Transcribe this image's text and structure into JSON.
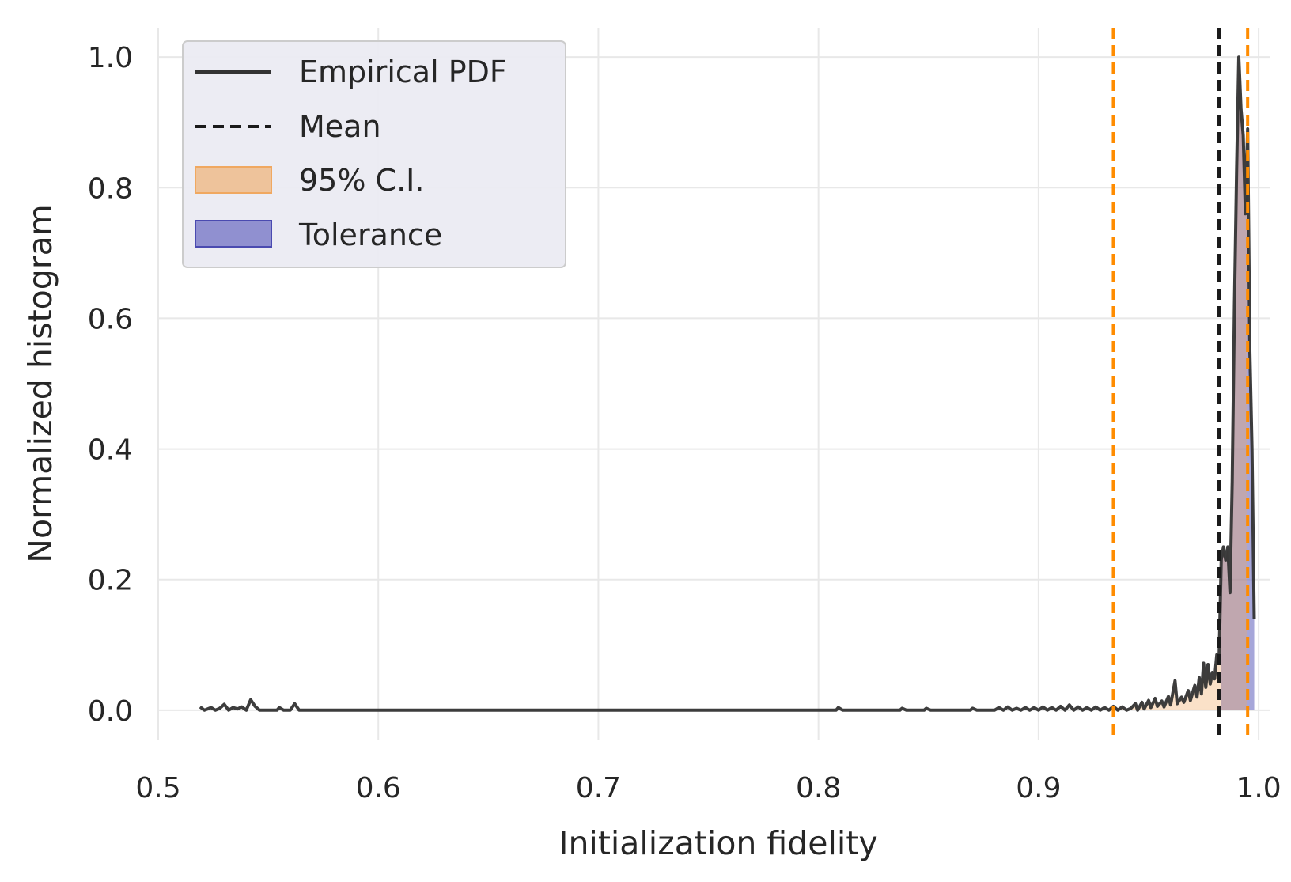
{
  "chart_data": {
    "type": "line",
    "title": "",
    "xlabel": "Initialization fidelity",
    "ylabel": "Normalized histogram",
    "xlim": [
      0.5,
      1.005
    ],
    "ylim": [
      -0.045,
      1.045
    ],
    "xticks": [
      0.5,
      0.6,
      0.7,
      0.8,
      0.9,
      1.0
    ],
    "xtick_labels": [
      "0.5",
      "0.6",
      "0.7",
      "0.8",
      "0.9",
      "1.0"
    ],
    "yticks": [
      0.0,
      0.2,
      0.4,
      0.6,
      0.8,
      1.0
    ],
    "ytick_labels": [
      "0.0",
      "0.2",
      "0.4",
      "0.6",
      "0.8",
      "1.0"
    ],
    "grid": true,
    "legend_position": "top-left",
    "legend": [
      {
        "label": "Empirical PDF",
        "kind": "line",
        "color": "#333333"
      },
      {
        "label": "Mean",
        "kind": "dashed",
        "color": "#1a1a1a"
      },
      {
        "label": "95% C.I.",
        "kind": "patch",
        "color": "#f0a860"
      },
      {
        "label": "Tolerance",
        "kind": "patch",
        "color": "#6a6ac0"
      }
    ],
    "series": [
      {
        "name": "Empirical PDF",
        "color": "#333333",
        "points": [
          [
            0.519,
            0.005
          ],
          [
            0.521,
            0.0
          ],
          [
            0.524,
            0.004
          ],
          [
            0.526,
            0.0
          ],
          [
            0.528,
            0.003
          ],
          [
            0.53,
            0.009
          ],
          [
            0.532,
            0.0
          ],
          [
            0.534,
            0.004
          ],
          [
            0.536,
            0.002
          ],
          [
            0.538,
            0.005
          ],
          [
            0.54,
            0.0
          ],
          [
            0.542,
            0.016
          ],
          [
            0.544,
            0.006
          ],
          [
            0.546,
            0.0
          ],
          [
            0.55,
            0.0
          ],
          [
            0.554,
            0.0
          ],
          [
            0.555,
            0.004
          ],
          [
            0.557,
            0.0
          ],
          [
            0.56,
            0.0
          ],
          [
            0.562,
            0.01
          ],
          [
            0.564,
            0.0
          ],
          [
            0.808,
            0.0
          ],
          [
            0.809,
            0.004
          ],
          [
            0.811,
            0.0
          ],
          [
            0.837,
            0.0
          ],
          [
            0.838,
            0.003
          ],
          [
            0.84,
            0.0
          ],
          [
            0.848,
            0.0
          ],
          [
            0.849,
            0.003
          ],
          [
            0.851,
            0.0
          ],
          [
            0.869,
            0.0
          ],
          [
            0.87,
            0.003
          ],
          [
            0.872,
            0.0
          ],
          [
            0.88,
            0.0
          ],
          [
            0.882,
            0.004
          ],
          [
            0.884,
            0.0
          ],
          [
            0.886,
            0.005
          ],
          [
            0.888,
            0.0
          ],
          [
            0.89,
            0.003
          ],
          [
            0.892,
            0.0
          ],
          [
            0.894,
            0.004
          ],
          [
            0.896,
            0.0
          ],
          [
            0.898,
            0.004
          ],
          [
            0.9,
            0.0
          ],
          [
            0.902,
            0.005
          ],
          [
            0.904,
            0.0
          ],
          [
            0.906,
            0.004
          ],
          [
            0.908,
            0.0
          ],
          [
            0.91,
            0.006
          ],
          [
            0.912,
            0.0
          ],
          [
            0.914,
            0.008
          ],
          [
            0.916,
            0.0
          ],
          [
            0.918,
            0.005
          ],
          [
            0.92,
            0.0
          ],
          [
            0.922,
            0.004
          ],
          [
            0.924,
            0.0
          ],
          [
            0.926,
            0.005
          ],
          [
            0.928,
            0.0
          ],
          [
            0.93,
            0.004
          ],
          [
            0.932,
            0.0
          ],
          [
            0.934,
            0.006
          ],
          [
            0.936,
            0.0
          ],
          [
            0.938,
            0.005
          ],
          [
            0.94,
            0.0
          ],
          [
            0.942,
            0.003
          ],
          [
            0.944,
            0.01
          ],
          [
            0.945,
            0.0
          ],
          [
            0.947,
            0.012
          ],
          [
            0.948,
            0.002
          ],
          [
            0.95,
            0.015
          ],
          [
            0.951,
            0.004
          ],
          [
            0.953,
            0.018
          ],
          [
            0.954,
            0.006
          ],
          [
            0.956,
            0.014
          ],
          [
            0.957,
            0.005
          ],
          [
            0.959,
            0.021
          ],
          [
            0.96,
            0.008
          ],
          [
            0.962,
            0.045
          ],
          [
            0.963,
            0.01
          ],
          [
            0.965,
            0.02
          ],
          [
            0.966,
            0.012
          ],
          [
            0.968,
            0.03
          ],
          [
            0.969,
            0.015
          ],
          [
            0.971,
            0.038
          ],
          [
            0.972,
            0.02
          ],
          [
            0.973,
            0.05
          ],
          [
            0.974,
            0.025
          ],
          [
            0.975,
            0.072
          ],
          [
            0.976,
            0.035
          ],
          [
            0.977,
            0.07
          ],
          [
            0.978,
            0.04
          ],
          [
            0.979,
            0.058
          ],
          [
            0.98,
            0.048
          ],
          [
            0.981,
            0.085
          ],
          [
            0.982,
            0.075
          ],
          [
            0.983,
            0.23
          ],
          [
            0.984,
            0.25
          ],
          [
            0.985,
            0.23
          ],
          [
            0.986,
            0.25
          ],
          [
            0.987,
            0.18
          ],
          [
            0.988,
            0.35
          ],
          [
            0.989,
            0.62
          ],
          [
            0.99,
            0.83
          ],
          [
            0.991,
            1.0
          ],
          [
            0.992,
            0.92
          ],
          [
            0.993,
            0.88
          ],
          [
            0.994,
            0.76
          ],
          [
            0.995,
            0.89
          ],
          [
            0.996,
            0.55
          ],
          [
            0.997,
            0.4
          ],
          [
            0.998,
            0.14
          ]
        ]
      }
    ],
    "mean_line": {
      "x": 0.982,
      "color": "#1a1a1a"
    },
    "ci_lines": {
      "x": [
        0.934,
        0.995
      ],
      "color": "#ff8c00"
    },
    "tolerance_region": {
      "x_start": 0.983,
      "x_end": 0.998,
      "color": "#6a6ac0"
    }
  }
}
